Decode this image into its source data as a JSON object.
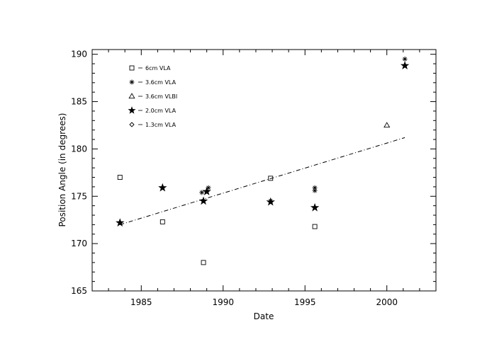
{
  "chart_data": {
    "type": "scatter",
    "xlabel": "Date",
    "ylabel": "Position Angle (in degrees)",
    "xlim": [
      1982,
      2003
    ],
    "ylim": [
      165,
      190.5
    ],
    "x_ticks": [
      1985,
      1990,
      1995,
      2000
    ],
    "y_ticks": [
      165,
      170,
      175,
      180,
      185,
      190
    ],
    "grid": false,
    "legend_position": "top-left",
    "series": [
      {
        "name": "6cm VLA",
        "marker": "square",
        "x": [
          1983.7,
          1986.3,
          1988.8,
          1992.9,
          1995.6
        ],
        "y": [
          177.0,
          172.3,
          168.0,
          176.9,
          171.8
        ]
      },
      {
        "name": "3.6cm VLA",
        "marker": "asterisk",
        "x": [
          1988.7,
          1989.1,
          1992.9,
          1995.6,
          1995.6,
          2001.1
        ],
        "y": [
          175.4,
          175.9,
          174.5,
          175.9,
          175.6,
          189.5
        ]
      },
      {
        "name": "3.6cm VLBI",
        "marker": "triangle",
        "x": [
          2000.0
        ],
        "y": [
          182.5
        ]
      },
      {
        "name": "2.0cm VLA",
        "marker": "star",
        "x": [
          1983.7,
          1986.3,
          1988.8,
          1989.0,
          1992.9,
          1995.6,
          2001.1
        ],
        "y": [
          172.2,
          175.9,
          174.5,
          175.5,
          174.4,
          173.8,
          188.8
        ]
      },
      {
        "name": "1.3cm VLA",
        "marker": "diamond",
        "x": [],
        "y": []
      }
    ],
    "fit_line": {
      "style": "dash-dot",
      "x": [
        1983.7,
        2001.1
      ],
      "y": [
        172.0,
        181.2
      ]
    }
  }
}
